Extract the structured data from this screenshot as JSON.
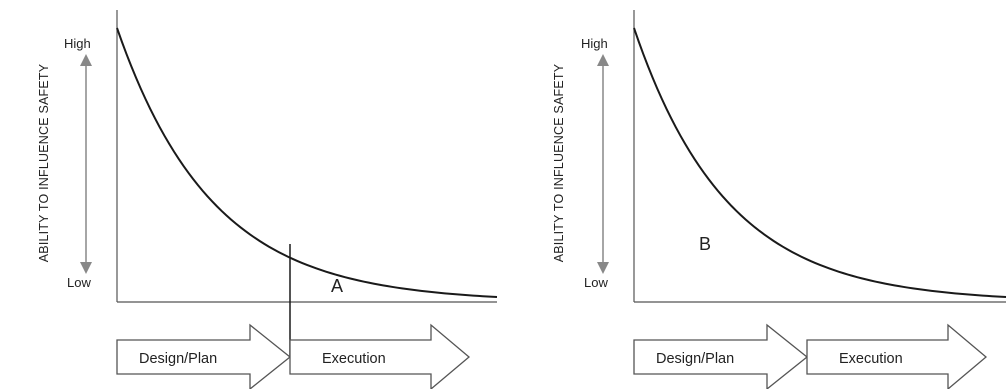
{
  "chart_data": [
    {
      "id": "panel_a",
      "type": "line",
      "ylabel": "ABILITY TO INFLUENCE SAFETY",
      "y_high_label": "High",
      "y_low_label": "Low",
      "curve": "decreasing exponential",
      "phases": [
        {
          "label": "Design/Plan"
        },
        {
          "label": "Execution"
        }
      ],
      "annotation": "A",
      "divider_at_phase_boundary": true
    },
    {
      "id": "panel_b",
      "type": "line",
      "ylabel": "ABILITY TO INFLUENCE SAFETY",
      "y_high_label": "High",
      "y_low_label": "Low",
      "curve": "decreasing exponential",
      "phases": [
        {
          "label": "Design/Plan"
        },
        {
          "label": "Execution"
        }
      ],
      "annotation": "B",
      "divider_at_phase_boundary": false
    }
  ],
  "colors": {
    "line": "#1a1a1a",
    "axis": "#555555",
    "arrow": "#888888",
    "phase_arrow_fill": "#ffffff",
    "phase_arrow_stroke": "#555555"
  }
}
